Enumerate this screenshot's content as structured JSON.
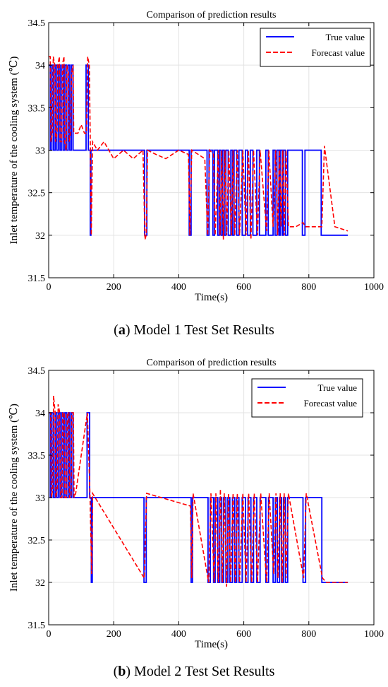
{
  "chart_data": [
    {
      "type": "line",
      "title": "Comparison of prediction results",
      "xlabel": "Time(s)",
      "ylabel": "Inlet temperature of the cooling system (℃)",
      "xlim": [
        0,
        1000
      ],
      "ylim": [
        31.5,
        34.5
      ],
      "xticks": [
        0,
        200,
        400,
        600,
        800,
        1000
      ],
      "yticks": [
        31.5,
        32,
        32.5,
        33,
        33.5,
        34,
        34.5
      ],
      "grid": true,
      "legend_position": "top-right",
      "caption_letter": "a",
      "caption_text": ") Model 1 Test Set Results",
      "series": [
        {
          "name": "True value",
          "color": "#0000ff",
          "style": "solid",
          "x": [
            0,
            5,
            5,
            10,
            10,
            15,
            15,
            20,
            20,
            25,
            25,
            30,
            30,
            35,
            35,
            40,
            40,
            45,
            45,
            50,
            50,
            55,
            55,
            60,
            60,
            65,
            65,
            70,
            70,
            75,
            75,
            80,
            80,
            115,
            115,
            122,
            122,
            128,
            128,
            130,
            130,
            133,
            133,
            295,
            295,
            302,
            302,
            432,
            432,
            438,
            438,
            487,
            487,
            493,
            493,
            505,
            505,
            510,
            510,
            520,
            520,
            525,
            525,
            530,
            530,
            535,
            535,
            540,
            540,
            545,
            545,
            552,
            552,
            560,
            560,
            565,
            565,
            570,
            570,
            578,
            578,
            585,
            585,
            595,
            595,
            605,
            605,
            612,
            612,
            620,
            620,
            628,
            628,
            640,
            640,
            648,
            648,
            668,
            668,
            675,
            675,
            690,
            690,
            696,
            696,
            702,
            702,
            708,
            708,
            712,
            712,
            718,
            718,
            722,
            722,
            728,
            728,
            735,
            735,
            780,
            780,
            788,
            788,
            838,
            838,
            850,
            850,
            920
          ],
          "y": [
            34,
            34,
            33,
            33,
            34,
            34,
            33,
            33,
            34,
            34,
            33,
            33,
            34,
            34,
            33,
            33,
            34,
            34,
            33,
            33,
            34,
            34,
            33,
            33,
            34,
            34,
            33,
            33,
            34,
            34,
            33,
            33,
            33,
            33,
            34,
            34,
            33,
            33,
            32,
            32,
            33,
            33,
            33,
            33,
            32,
            32,
            33,
            33,
            32,
            32,
            33,
            33,
            32,
            32,
            33,
            33,
            32,
            32,
            33,
            33,
            32,
            32,
            33,
            33,
            32,
            32,
            33,
            33,
            32,
            32,
            33,
            33,
            32,
            32,
            33,
            33,
            32,
            32,
            33,
            33,
            32,
            32,
            33,
            33,
            32,
            32,
            33,
            33,
            32,
            32,
            33,
            33,
            32,
            32,
            33,
            33,
            32,
            32,
            33,
            33,
            32,
            32,
            33,
            33,
            32,
            32,
            33,
            33,
            32,
            32,
            33,
            33,
            32,
            32,
            33,
            33,
            32,
            32,
            33,
            33,
            32,
            32,
            33,
            33,
            32,
            32,
            32,
            32
          ]
        },
        {
          "name": "Forecast value",
          "color": "#ff0000",
          "style": "dashed",
          "x": [
            0,
            5,
            7,
            12,
            14,
            19,
            21,
            26,
            28,
            33,
            35,
            40,
            42,
            47,
            49,
            54,
            56,
            61,
            63,
            68,
            70,
            75,
            77,
            82,
            90,
            100,
            110,
            116,
            120,
            125,
            128,
            131,
            135,
            150,
            170,
            200,
            230,
            260,
            290,
            296,
            300,
            304,
            330,
            360,
            400,
            430,
            434,
            440,
            480,
            489,
            495,
            507,
            512,
            522,
            527,
            532,
            537,
            542,
            547,
            554,
            562,
            567,
            572,
            580,
            587,
            597,
            607,
            614,
            622,
            630,
            642,
            650,
            670,
            677,
            690,
            698,
            704,
            710,
            714,
            720,
            724,
            730,
            737,
            760,
            782,
            790,
            810,
            840,
            848,
            880,
            920
          ],
          "y": [
            34.1,
            34.1,
            33.1,
            33.2,
            34.1,
            34.0,
            33.1,
            33.2,
            34.0,
            34.1,
            33.1,
            33.1,
            34.0,
            34.1,
            33.1,
            33.0,
            34.0,
            33.9,
            33.1,
            33.2,
            33.9,
            34.0,
            33.2,
            33.2,
            33.2,
            33.3,
            33.2,
            33.2,
            34.1,
            34.0,
            33.1,
            32.0,
            33.1,
            33.0,
            33.1,
            32.9,
            33.0,
            32.9,
            33.0,
            31.95,
            32.0,
            33.0,
            32.95,
            32.9,
            33.0,
            32.95,
            32.0,
            33.0,
            32.9,
            32.0,
            33.0,
            32.95,
            32.0,
            33.0,
            32.0,
            33.0,
            31.95,
            33.0,
            32.0,
            33.0,
            32.0,
            33.0,
            32.0,
            33.0,
            32.0,
            33.0,
            32.0,
            33.0,
            31.95,
            33.0,
            32.0,
            33.0,
            32.05,
            33.0,
            32.1,
            33.0,
            32.0,
            33.0,
            32.1,
            33.0,
            32.0,
            33.0,
            32.1,
            32.1,
            32.15,
            32.1,
            32.1,
            32.1,
            33.05,
            32.1,
            32.05
          ]
        }
      ]
    },
    {
      "type": "line",
      "title": "Comparison of prediction results",
      "xlabel": "Time(s)",
      "ylabel": "Inlet temperature of the cooling system (℃)",
      "xlim": [
        0,
        1000
      ],
      "ylim": [
        31.5,
        34.5
      ],
      "xticks": [
        0,
        200,
        400,
        600,
        800,
        1000
      ],
      "yticks": [
        31.5,
        32,
        32.5,
        33,
        33.5,
        34,
        34.5
      ],
      "grid": true,
      "legend_position": "top-right",
      "caption_letter": "b",
      "caption_text": ") Model 2 Test Set Results",
      "series": [
        {
          "name": "True value",
          "color": "#0000ff",
          "style": "solid",
          "x": [
            0,
            5,
            5,
            10,
            10,
            15,
            15,
            20,
            20,
            25,
            25,
            30,
            30,
            35,
            35,
            40,
            40,
            45,
            45,
            50,
            50,
            55,
            55,
            60,
            60,
            65,
            65,
            70,
            70,
            75,
            75,
            80,
            80,
            118,
            118,
            126,
            126,
            131,
            131,
            134,
            134,
            293,
            293,
            300,
            300,
            438,
            438,
            442,
            442,
            490,
            490,
            497,
            497,
            507,
            507,
            512,
            512,
            520,
            520,
            526,
            526,
            532,
            532,
            538,
            538,
            545,
            545,
            551,
            551,
            557,
            557,
            565,
            565,
            572,
            572,
            578,
            578,
            585,
            585,
            595,
            595,
            605,
            605,
            613,
            613,
            622,
            622,
            630,
            630,
            640,
            640,
            650,
            650,
            668,
            668,
            676,
            676,
            690,
            690,
            697,
            697,
            703,
            703,
            710,
            710,
            716,
            716,
            722,
            722,
            728,
            728,
            735,
            735,
            782,
            782,
            790,
            790,
            840,
            840,
            852,
            852,
            920
          ],
          "y": [
            34,
            34,
            33,
            33,
            34,
            34,
            33,
            33,
            34,
            34,
            33,
            33,
            34,
            34,
            33,
            33,
            34,
            34,
            33,
            33,
            34,
            34,
            33,
            33,
            34,
            34,
            33,
            33,
            34,
            34,
            33,
            33,
            33,
            33,
            34,
            34,
            33,
            33,
            32,
            32,
            33,
            33,
            32,
            32,
            33,
            33,
            32,
            32,
            33,
            33,
            32,
            32,
            33,
            33,
            32,
            32,
            33,
            33,
            32,
            32,
            33,
            33,
            32,
            32,
            33,
            33,
            32,
            32,
            33,
            33,
            32,
            32,
            33,
            33,
            32,
            32,
            33,
            33,
            32,
            32,
            33,
            33,
            32,
            32,
            33,
            33,
            32,
            32,
            33,
            33,
            32,
            32,
            33,
            33,
            32,
            32,
            33,
            33,
            32,
            32,
            33,
            33,
            32,
            32,
            33,
            33,
            32,
            32,
            33,
            33,
            32,
            32,
            33,
            33,
            32,
            32,
            33,
            33,
            32,
            32,
            32,
            32
          ]
        },
        {
          "name": "Forecast value",
          "color": "#ff0000",
          "style": "dashed",
          "x": [
            0,
            6,
            8,
            13,
            15,
            20,
            22,
            27,
            29,
            34,
            36,
            41,
            43,
            48,
            50,
            55,
            57,
            62,
            64,
            69,
            71,
            76,
            78,
            83,
            119,
            127,
            132,
            135,
            294,
            301,
            436,
            440,
            444,
            492,
            499,
            509,
            514,
            522,
            528,
            534,
            540,
            547,
            553,
            559,
            567,
            574,
            580,
            587,
            597,
            607,
            615,
            624,
            632,
            642,
            652,
            670,
            678,
            692,
            699,
            705,
            712,
            718,
            724,
            730,
            737,
            784,
            792,
            842,
            854,
            920
          ],
          "y": [
            34.0,
            34.0,
            33.0,
            33.1,
            34.2,
            34.0,
            33.0,
            33.1,
            34.1,
            34.0,
            33.0,
            33.0,
            34.0,
            34.0,
            33.0,
            33.0,
            34.0,
            34.0,
            33.0,
            33.0,
            34.0,
            34.0,
            33.0,
            33.05,
            34.0,
            33.05,
            32.1,
            33.05,
            32.05,
            33.05,
            32.9,
            32.05,
            33.05,
            32.0,
            33.05,
            32.0,
            33.05,
            32.0,
            33.1,
            32.0,
            33.05,
            31.95,
            33.05,
            32.0,
            33.05,
            32.0,
            33.05,
            32.0,
            33.05,
            32.0,
            33.05,
            32.0,
            33.05,
            32.0,
            33.05,
            32.0,
            33.05,
            32.1,
            33.05,
            32.05,
            33.05,
            32.0,
            33.05,
            32.05,
            33.05,
            32.05,
            33.05,
            32.05,
            32.0,
            32.0
          ]
        }
      ]
    }
  ]
}
